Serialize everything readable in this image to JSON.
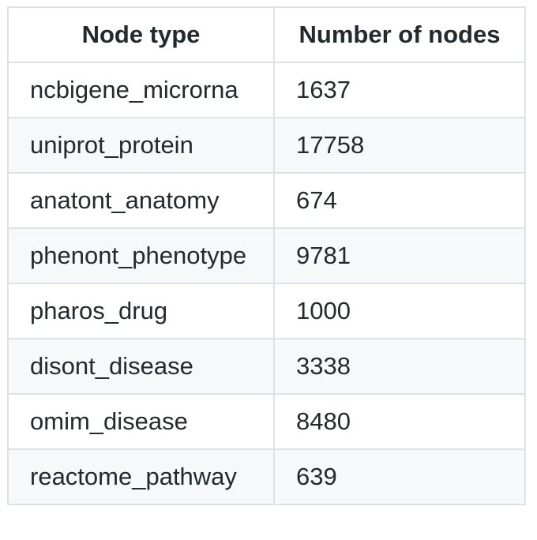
{
  "table": {
    "headers": [
      "Node type",
      "Number of nodes"
    ],
    "rows": [
      [
        "ncbigene_microrna",
        "1637"
      ],
      [
        "uniprot_protein",
        "17758"
      ],
      [
        "anatont_anatomy",
        "674"
      ],
      [
        "phenont_phenotype",
        "9781"
      ],
      [
        "pharos_drug",
        "1000"
      ],
      [
        "disont_disease",
        "3338"
      ],
      [
        "omim_disease",
        "8480"
      ],
      [
        "reactome_pathway",
        "639"
      ]
    ]
  },
  "colors": {
    "border": "#dfe2e5",
    "row_alt": "#f6f8fa",
    "text": "#24292e"
  }
}
